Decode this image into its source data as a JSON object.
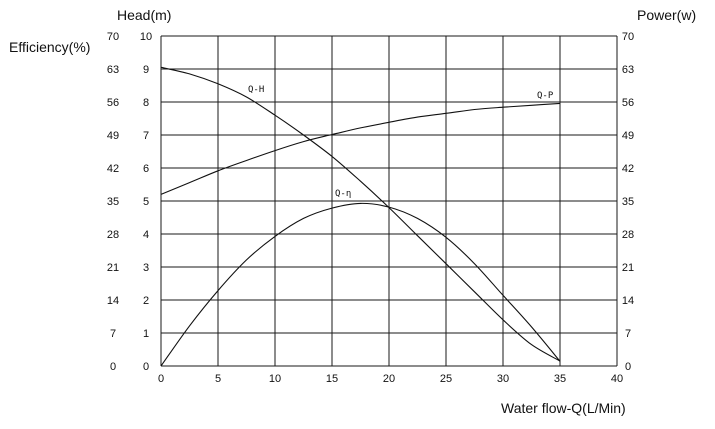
{
  "chart_data": {
    "type": "line",
    "x_axis": {
      "label": "Water flow-Q(L/Min)",
      "min": 0,
      "max": 40,
      "ticks": [
        "0",
        "5",
        "10",
        "15",
        "20",
        "25",
        "30",
        "35",
        "40"
      ]
    },
    "y_axes": {
      "head": {
        "label": "Head(m)",
        "min": 0,
        "max": 10,
        "ticks": [
          "0",
          "1",
          "2",
          "3",
          "4",
          "5",
          "6",
          "7",
          "8",
          "9",
          "10"
        ]
      },
      "efficiency": {
        "label": "Efficiency(%)",
        "min": 0,
        "max": 70,
        "ticks": [
          "0",
          "7",
          "14",
          "21",
          "28",
          "35",
          "42",
          "49",
          "56",
          "63",
          "70"
        ]
      },
      "power": {
        "label": "Power(w)",
        "min": 0,
        "max": 70,
        "ticks": [
          "0",
          "7",
          "14",
          "21",
          "28",
          "35",
          "42",
          "49",
          "56",
          "63",
          "70"
        ]
      }
    },
    "grid": true,
    "series": [
      {
        "name": "Q-H",
        "axis": "head",
        "x": [
          0,
          2.5,
          5,
          7.5,
          10,
          12.5,
          15,
          17.5,
          20,
          22.5,
          25,
          27.5,
          30,
          32.5,
          35
        ],
        "y": [
          9.05,
          8.85,
          8.55,
          8.15,
          7.6,
          7.0,
          6.35,
          5.6,
          4.8,
          3.95,
          3.1,
          2.25,
          1.4,
          0.65,
          0.15
        ]
      },
      {
        "name": "Q-P",
        "axis": "power",
        "x": [
          0,
          2.5,
          5,
          7.5,
          10,
          12.5,
          15,
          17.5,
          20,
          22.5,
          25,
          27.5,
          30,
          32.5,
          35
        ],
        "y": [
          36.4,
          38.9,
          41.4,
          43.6,
          45.7,
          47.6,
          49.1,
          50.5,
          51.7,
          52.8,
          53.6,
          54.4,
          54.9,
          55.3,
          55.7
        ]
      },
      {
        "name": "Q-η",
        "axis": "efficiency",
        "x": [
          0,
          2.5,
          5,
          7.5,
          10,
          12.5,
          15,
          17.5,
          20,
          22.5,
          25,
          27.5,
          30,
          32.5,
          35
        ],
        "y": [
          0,
          8.5,
          16,
          22.5,
          27.5,
          31.3,
          33.5,
          34.5,
          33.7,
          31.3,
          27.3,
          21.7,
          15,
          8.3,
          1
        ]
      }
    ]
  }
}
